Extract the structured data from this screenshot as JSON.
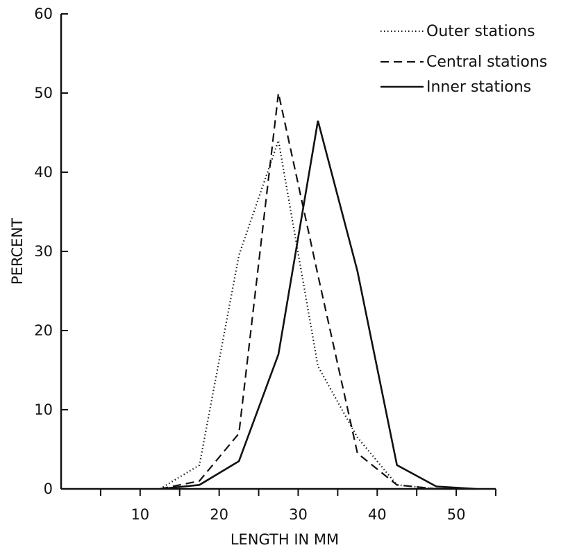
{
  "chart_data": {
    "type": "line",
    "xlabel": "LENGTH IN MM",
    "ylabel": "PERCENT",
    "xlim": [
      0,
      55
    ],
    "ylim": [
      0,
      60
    ],
    "x_ticks": [
      10,
      20,
      30,
      40,
      50
    ],
    "y_ticks": [
      0,
      10,
      20,
      30,
      40,
      50,
      60
    ],
    "grid": false,
    "legend_position": "top-right",
    "x": [
      12.5,
      17.5,
      22.5,
      27.5,
      32.5,
      37.5,
      42.5,
      47.5,
      52.5
    ],
    "series": [
      {
        "name": "Outer stations",
        "style": "dotted",
        "values": [
          0,
          3,
          29.5,
          44,
          15.5,
          6.5,
          0.5,
          0,
          0
        ]
      },
      {
        "name": "Central stations",
        "style": "dashed",
        "values": [
          0,
          1,
          7,
          50,
          27,
          4.5,
          0.5,
          0,
          0
        ]
      },
      {
        "name": "Inner stations",
        "style": "solid",
        "values": [
          0,
          0.5,
          3.5,
          17,
          46.5,
          27.5,
          3,
          0.3,
          0
        ]
      }
    ]
  }
}
